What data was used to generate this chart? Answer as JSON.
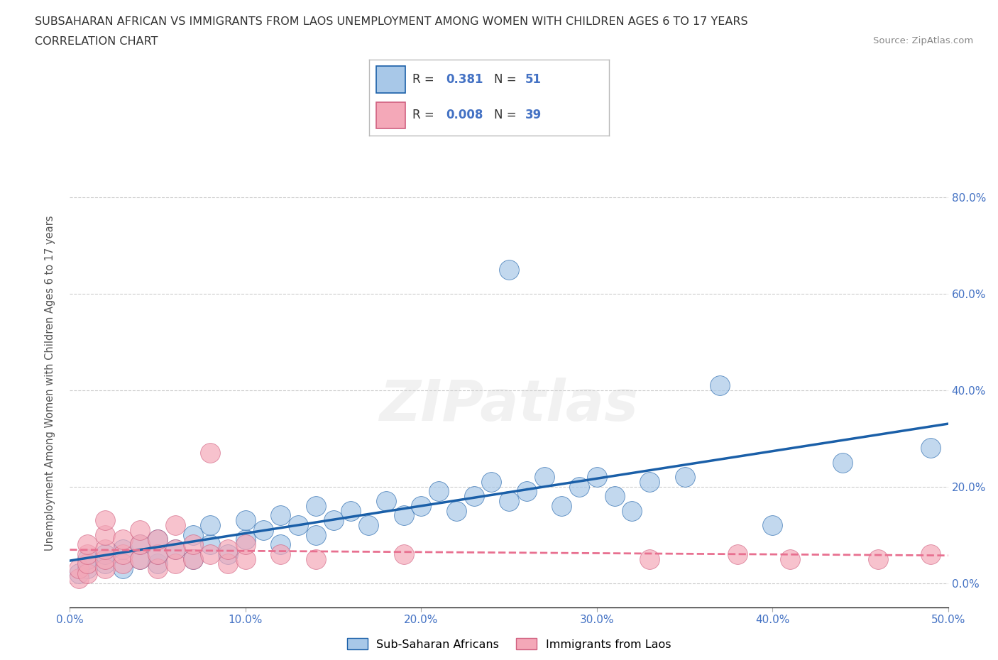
{
  "title_line1": "SUBSAHARAN AFRICAN VS IMMIGRANTS FROM LAOS UNEMPLOYMENT AMONG WOMEN WITH CHILDREN AGES 6 TO 17 YEARS",
  "title_line2": "CORRELATION CHART",
  "source": "Source: ZipAtlas.com",
  "xlabel_ticks": [
    "0.0%",
    "10.0%",
    "20.0%",
    "30.0%",
    "40.0%",
    "50.0%"
  ],
  "ylabel": "Unemployment Among Women with Children Ages 6 to 17 years",
  "ylabel_ticks": [
    "0.0%",
    "20.0%",
    "40.0%",
    "60.0%",
    "80.0%"
  ],
  "xlim": [
    0.0,
    0.5
  ],
  "ylim": [
    -0.05,
    0.88
  ],
  "legend_labels": [
    "Sub-Saharan Africans",
    "Immigrants from Laos"
  ],
  "R_blue": 0.381,
  "N_blue": 51,
  "R_pink": 0.008,
  "N_pink": 39,
  "color_blue": "#a8c8e8",
  "color_pink": "#f4a8b8",
  "trendline_blue": "#1a5fa8",
  "trendline_pink": "#e87090",
  "watermark": "ZIPatlas",
  "blue_scatter": [
    [
      0.005,
      0.02
    ],
    [
      0.01,
      0.03
    ],
    [
      0.01,
      0.05
    ],
    [
      0.02,
      0.04
    ],
    [
      0.02,
      0.06
    ],
    [
      0.03,
      0.03
    ],
    [
      0.03,
      0.07
    ],
    [
      0.04,
      0.05
    ],
    [
      0.04,
      0.08
    ],
    [
      0.05,
      0.04
    ],
    [
      0.05,
      0.06
    ],
    [
      0.05,
      0.09
    ],
    [
      0.06,
      0.07
    ],
    [
      0.07,
      0.05
    ],
    [
      0.07,
      0.1
    ],
    [
      0.08,
      0.08
    ],
    [
      0.08,
      0.12
    ],
    [
      0.09,
      0.06
    ],
    [
      0.1,
      0.09
    ],
    [
      0.1,
      0.13
    ],
    [
      0.11,
      0.11
    ],
    [
      0.12,
      0.08
    ],
    [
      0.12,
      0.14
    ],
    [
      0.13,
      0.12
    ],
    [
      0.14,
      0.1
    ],
    [
      0.14,
      0.16
    ],
    [
      0.15,
      0.13
    ],
    [
      0.16,
      0.15
    ],
    [
      0.17,
      0.12
    ],
    [
      0.18,
      0.17
    ],
    [
      0.19,
      0.14
    ],
    [
      0.2,
      0.16
    ],
    [
      0.21,
      0.19
    ],
    [
      0.22,
      0.15
    ],
    [
      0.23,
      0.18
    ],
    [
      0.24,
      0.21
    ],
    [
      0.25,
      0.17
    ],
    [
      0.26,
      0.19
    ],
    [
      0.27,
      0.22
    ],
    [
      0.28,
      0.16
    ],
    [
      0.29,
      0.2
    ],
    [
      0.3,
      0.22
    ],
    [
      0.31,
      0.18
    ],
    [
      0.32,
      0.15
    ],
    [
      0.33,
      0.21
    ],
    [
      0.35,
      0.22
    ],
    [
      0.37,
      0.41
    ],
    [
      0.4,
      0.12
    ],
    [
      0.44,
      0.25
    ],
    [
      0.49,
      0.28
    ],
    [
      0.25,
      0.65
    ]
  ],
  "pink_scatter": [
    [
      0.005,
      0.01
    ],
    [
      0.005,
      0.03
    ],
    [
      0.01,
      0.02
    ],
    [
      0.01,
      0.04
    ],
    [
      0.01,
      0.06
    ],
    [
      0.01,
      0.08
    ],
    [
      0.02,
      0.03
    ],
    [
      0.02,
      0.05
    ],
    [
      0.02,
      0.07
    ],
    [
      0.02,
      0.1
    ],
    [
      0.02,
      0.13
    ],
    [
      0.03,
      0.04
    ],
    [
      0.03,
      0.06
    ],
    [
      0.03,
      0.09
    ],
    [
      0.04,
      0.05
    ],
    [
      0.04,
      0.08
    ],
    [
      0.04,
      0.11
    ],
    [
      0.05,
      0.03
    ],
    [
      0.05,
      0.06
    ],
    [
      0.05,
      0.09
    ],
    [
      0.06,
      0.04
    ],
    [
      0.06,
      0.07
    ],
    [
      0.06,
      0.12
    ],
    [
      0.07,
      0.05
    ],
    [
      0.07,
      0.08
    ],
    [
      0.08,
      0.06
    ],
    [
      0.08,
      0.27
    ],
    [
      0.09,
      0.04
    ],
    [
      0.09,
      0.07
    ],
    [
      0.1,
      0.05
    ],
    [
      0.1,
      0.08
    ],
    [
      0.12,
      0.06
    ],
    [
      0.14,
      0.05
    ],
    [
      0.19,
      0.06
    ],
    [
      0.33,
      0.05
    ],
    [
      0.38,
      0.06
    ],
    [
      0.41,
      0.05
    ],
    [
      0.46,
      0.05
    ],
    [
      0.49,
      0.06
    ]
  ]
}
